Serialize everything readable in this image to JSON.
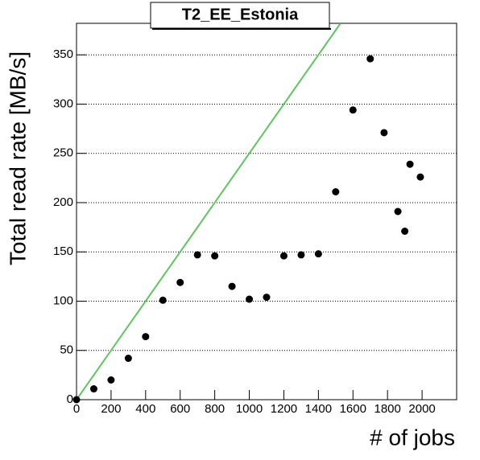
{
  "chart_data": {
    "type": "scatter",
    "title": "T2_EE_Estonia",
    "x_label": "# of jobs",
    "y_label": "Total read rate [MB/s]",
    "x": [
      0,
      100,
      200,
      300,
      400,
      500,
      600,
      700,
      800,
      900,
      1000,
      1100,
      1200,
      1300,
      1400,
      1500,
      1600,
      1700,
      1780,
      1860,
      1900,
      1930,
      1990
    ],
    "values": [
      0,
      11,
      20,
      42,
      64,
      101,
      119,
      147,
      146,
      115,
      102,
      104,
      146,
      147,
      148,
      211,
      294,
      346,
      271,
      191,
      171,
      239,
      226
    ],
    "color": "#000000",
    "reference_line": {
      "x": [
        0,
        1528
      ],
      "values": [
        0,
        382
      ],
      "color": "#5ac85a"
    },
    "xlim": [
      0,
      2200
    ],
    "ylim": [
      0,
      382
    ],
    "xticks": [
      0,
      200,
      400,
      600,
      800,
      1000,
      1200,
      1400,
      1600,
      1800,
      2000
    ],
    "yticks": [
      0,
      50,
      100,
      150,
      200,
      250,
      300,
      350
    ],
    "grid": "y"
  }
}
